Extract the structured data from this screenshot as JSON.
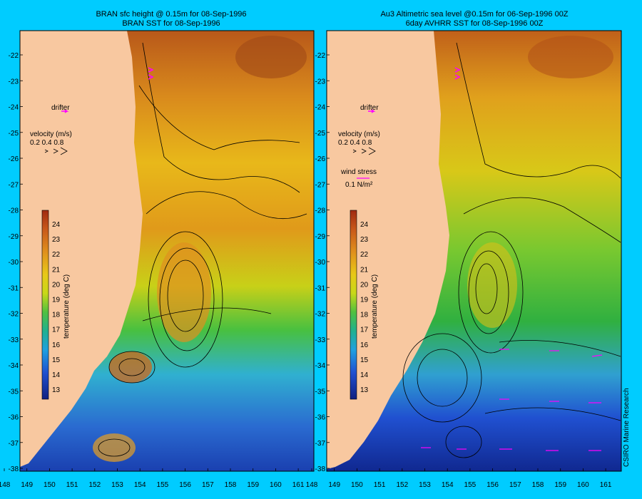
{
  "left_panel": {
    "title_line1": "BRAN sfc height @ 0.15m for 08-Sep-1996",
    "title_line2": "BRAN SST for 08-Sep-1996",
    "drifter_label": "drifter",
    "velocity_label": "velocity (m/s)",
    "velocity_values": "0.2 0.4 0.8"
  },
  "right_panel": {
    "title_line1": "Au3 Altimetric sea level  @0.15m  for 06-Sep-1996 00Z",
    "title_line2": "6day AVHRR SST for 08-Sep-1996 00Z",
    "drifter_label": "drifter",
    "velocity_label": "velocity (m/s)",
    "velocity_values": "0.2 0.4 0.8",
    "wind_label": "wind stress",
    "wind_value": "0.1 N/m²",
    "credit": "CSIRO Marine Research"
  },
  "colorbar": {
    "label": "temperature (deg C)",
    "ticks": [
      "24",
      "23",
      "22",
      "21",
      "20",
      "19",
      "18",
      "17",
      "16",
      "15",
      "14",
      "13"
    ]
  },
  "axes": {
    "lat_ticks": [
      "-22",
      "-23",
      "-24",
      "-25",
      "-26",
      "-27",
      "-28",
      "-29",
      "-30",
      "-31",
      "-32",
      "-33",
      "-34",
      "-35",
      "-36",
      "-37",
      "-38"
    ],
    "lon_ticks": [
      "148",
      "149",
      "150",
      "151",
      "152",
      "153",
      "154",
      "155",
      "156",
      "157",
      "158",
      "159",
      "160",
      "161"
    ]
  },
  "colors": {
    "background": "#00ccff",
    "land": "#f8c8a0",
    "drifter": "#ff00ff"
  }
}
